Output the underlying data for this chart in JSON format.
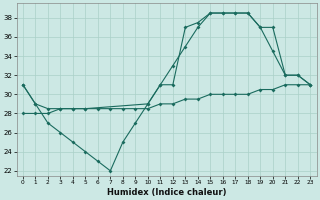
{
  "xlabel": "Humidex (Indice chaleur)",
  "bg_color": "#cce8e4",
  "grid_color": "#aad0c8",
  "line_color": "#1a6b5e",
  "xlim": [
    -0.5,
    23.5
  ],
  "ylim": [
    21.5,
    39.5
  ],
  "xticks": [
    0,
    1,
    2,
    3,
    4,
    5,
    6,
    7,
    8,
    9,
    10,
    11,
    12,
    13,
    14,
    15,
    16,
    17,
    18,
    19,
    20,
    21,
    22,
    23
  ],
  "yticks": [
    22,
    24,
    26,
    28,
    30,
    32,
    34,
    36,
    38
  ],
  "series_zigzag": [
    [
      0,
      31
    ],
    [
      1,
      29
    ],
    [
      2,
      27
    ],
    [
      3,
      26
    ],
    [
      4,
      25
    ],
    [
      5,
      24
    ],
    [
      6,
      23
    ],
    [
      7,
      22
    ],
    [
      8,
      25
    ],
    [
      9,
      27
    ],
    [
      10,
      29
    ],
    [
      11,
      31
    ],
    [
      12,
      31
    ],
    [
      13,
      37
    ],
    [
      14,
      37.5
    ],
    [
      15,
      38.5
    ],
    [
      16,
      38.5
    ],
    [
      17,
      38.5
    ],
    [
      18,
      38.5
    ],
    [
      19,
      37
    ],
    [
      20,
      34.5
    ],
    [
      21,
      32
    ],
    [
      22,
      32
    ],
    [
      23,
      31
    ]
  ],
  "series_diagonal": [
    [
      0,
      28
    ],
    [
      1,
      28
    ],
    [
      2,
      28
    ],
    [
      3,
      28.5
    ],
    [
      4,
      28.5
    ],
    [
      5,
      28.5
    ],
    [
      6,
      28.5
    ],
    [
      7,
      28.5
    ],
    [
      8,
      28.5
    ],
    [
      9,
      28.5
    ],
    [
      10,
      28.5
    ],
    [
      11,
      29
    ],
    [
      12,
      29
    ],
    [
      13,
      29.5
    ],
    [
      14,
      29.5
    ],
    [
      15,
      30
    ],
    [
      16,
      30
    ],
    [
      17,
      30
    ],
    [
      18,
      30
    ],
    [
      19,
      30.5
    ],
    [
      20,
      30.5
    ],
    [
      21,
      31
    ],
    [
      22,
      31
    ],
    [
      23,
      31
    ]
  ],
  "series_arc": [
    [
      0,
      31
    ],
    [
      1,
      29
    ],
    [
      2,
      28.5
    ],
    [
      3,
      28.5
    ],
    [
      4,
      28.5
    ],
    [
      5,
      28.5
    ],
    [
      10,
      29
    ],
    [
      11,
      31
    ],
    [
      12,
      33
    ],
    [
      13,
      35
    ],
    [
      14,
      37
    ],
    [
      15,
      38.5
    ],
    [
      16,
      38.5
    ],
    [
      17,
      38.5
    ],
    [
      18,
      38.5
    ],
    [
      19,
      37
    ],
    [
      20,
      37
    ],
    [
      21,
      32
    ],
    [
      22,
      32
    ],
    [
      23,
      31
    ]
  ]
}
